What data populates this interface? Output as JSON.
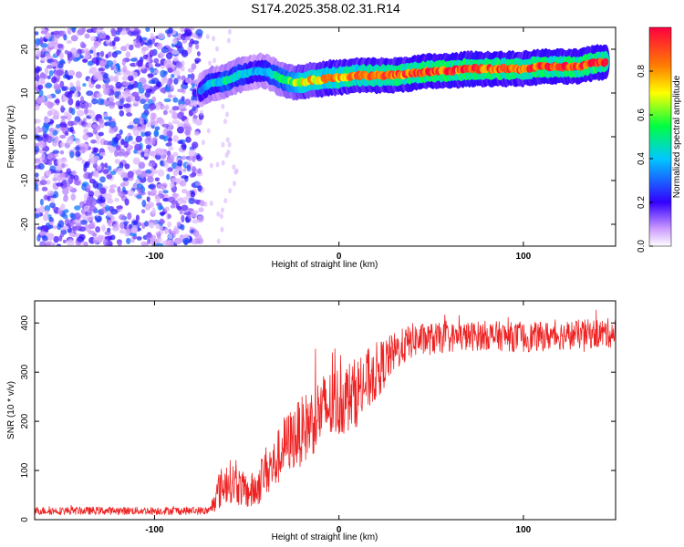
{
  "title": "S174.2025.358.02.31.R14",
  "chart_data": [
    {
      "type": "heatmap",
      "xlabel": "Height of straight line (km)",
      "ylabel": "Frequency (Hz)",
      "xlim": [
        -165,
        150
      ],
      "ylim": [
        -25,
        25
      ],
      "xticks": [
        -100,
        0,
        100
      ],
      "yticks": [
        -20,
        -10,
        0,
        10,
        20
      ],
      "colorbar": {
        "label": "Normalized spectral amplitude",
        "range": [
          0,
          1
        ],
        "ticks": [
          "0.0",
          "0.2",
          "0.4",
          "0.6",
          "0.8"
        ],
        "colormap": [
          "#ffffff",
          "#9933ff",
          "#3300ff",
          "#00c8ff",
          "#00ff40",
          "#ffff00",
          "#ff8000",
          "#ff0040"
        ]
      },
      "noise_region": {
        "x_range": [
          -165,
          -75
        ],
        "y_range": [
          -25,
          25
        ],
        "level": 0.15
      },
      "ridge": {
        "x": [
          -75,
          -70,
          -65,
          -60,
          -55,
          -50,
          -45,
          -40,
          -35,
          -30,
          -25,
          -20,
          -15,
          -10,
          -5,
          0,
          10,
          20,
          30,
          40,
          50,
          60,
          70,
          80,
          90,
          100,
          110,
          120,
          130,
          140,
          145
        ],
        "y": [
          10.5,
          12,
          12.5,
          13,
          14,
          14.5,
          15,
          15,
          14,
          13,
          12.5,
          12.5,
          13,
          13,
          13.5,
          13.5,
          14,
          14,
          14,
          14.5,
          15,
          15,
          15.5,
          15.5,
          15.5,
          15.5,
          16,
          16,
          16,
          17,
          17
        ],
        "amplitude": [
          0.3,
          0.45,
          0.4,
          0.5,
          0.45,
          0.4,
          0.35,
          0.4,
          0.45,
          0.5,
          0.6,
          0.7,
          0.75,
          0.75,
          0.8,
          0.8,
          0.8,
          0.85,
          0.85,
          0.85,
          0.9,
          0.9,
          0.9,
          0.9,
          0.9,
          0.85,
          0.9,
          0.9,
          0.9,
          0.95,
          0.9
        ]
      }
    },
    {
      "type": "line",
      "xlabel": "Height of straight line (km)",
      "ylabel": "SNR (10 * v/v)",
      "xlim": [
        -165,
        150
      ],
      "ylim": [
        0,
        445
      ],
      "xticks": [
        -100,
        0,
        100
      ],
      "yticks": [
        0,
        100,
        200,
        300,
        400
      ],
      "color": "#ee2222",
      "envelope": {
        "x": [
          -165,
          -70,
          -65,
          -60,
          -55,
          -50,
          -45,
          -40,
          -35,
          -30,
          -20,
          -10,
          0,
          10,
          20,
          30,
          40,
          60,
          80,
          100,
          120,
          150
        ],
        "mean": [
          18,
          18,
          60,
          80,
          70,
          55,
          60,
          100,
          110,
          150,
          180,
          220,
          240,
          260,
          300,
          340,
          365,
          370,
          375,
          370,
          375,
          380
        ],
        "spread": [
          8,
          8,
          40,
          45,
          40,
          35,
          40,
          50,
          55,
          60,
          70,
          75,
          75,
          70,
          60,
          40,
          35,
          30,
          30,
          30,
          30,
          30
        ]
      }
    }
  ]
}
